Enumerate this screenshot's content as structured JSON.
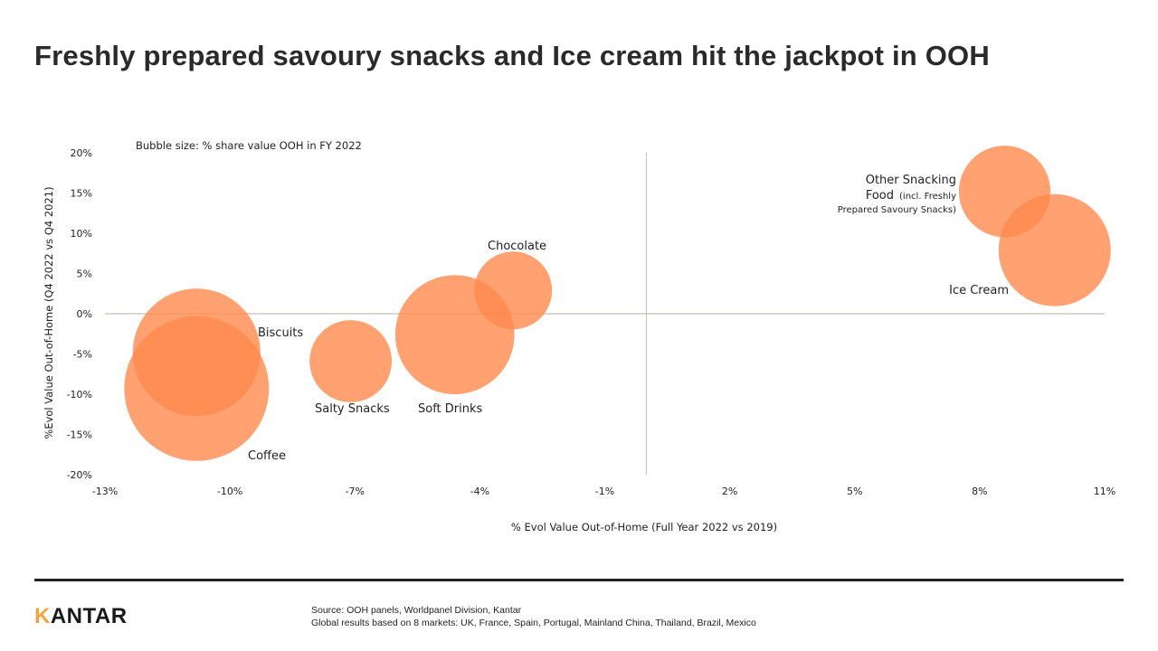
{
  "header": {
    "title": "Freshly prepared savoury snacks and Ice cream hit the jackpot in OOH"
  },
  "chart_data": {
    "type": "scatter",
    "subtype": "bubble",
    "note": "Bubble size: % share value OOH in FY 2022",
    "xlabel": "% Evol  Value Out-of-Home  (Full Year 2022 vs 2019)",
    "ylabel": "%Evol  Value Out-of-Home  (Q4 2022 vs Q4 2021)",
    "xlim": [
      -13,
      11
    ],
    "ylim": [
      -20,
      20
    ],
    "xticks": [
      -13,
      -10,
      -7,
      -4,
      -1,
      2,
      5,
      8,
      11
    ],
    "xtick_labels": [
      "-13%",
      "-10%",
      "-7%",
      "-4%",
      "-1%",
      "2%",
      "5%",
      "8%",
      "11%"
    ],
    "yticks": [
      20,
      15,
      10,
      5,
      0,
      -5,
      -10,
      -15,
      -20
    ],
    "ytick_labels": [
      "20%",
      "15%",
      "10%",
      "5%",
      "0%",
      "-5%",
      "-10%",
      "-15%",
      "-20%"
    ],
    "grid": false,
    "bubble_color": "#ff8a4e",
    "bubble_opacity": 0.8,
    "points": [
      {
        "name": "Coffee",
        "x": -10.8,
        "y": -9.3,
        "size": 9.0
      },
      {
        "name": "Biscuits",
        "x": -10.8,
        "y": -4.8,
        "size": 7.0
      },
      {
        "name": "Salty Snacks",
        "x": -7.1,
        "y": -5.9,
        "size": 2.9
      },
      {
        "name": "Soft Drinks",
        "x": -4.6,
        "y": -2.6,
        "size": 6.1
      },
      {
        "name": "Chocolate",
        "x": -3.2,
        "y": 2.9,
        "size": 2.6
      },
      {
        "name": "Other Snacking Food",
        "x": 8.6,
        "y": 15.2,
        "size": 3.6
      },
      {
        "name": "Ice Cream",
        "x": 9.8,
        "y": 7.9,
        "size": 5.4
      }
    ],
    "labels": {
      "coffee": "Coffee",
      "biscuits": "Biscuits",
      "salty_snacks": "Salty Snacks",
      "soft_drinks": "Soft Drinks",
      "chocolate": "Chocolate",
      "ice_cream": "Ice Cream",
      "other_snacking_line1": "Other Snacking",
      "other_snacking_line2": "Food",
      "other_snacking_line2_small": "(incl. Freshly",
      "other_snacking_line3_small": "Prepared Savoury Snacks)"
    }
  },
  "footer": {
    "logo_first": "K",
    "logo_rest": "ANTAR",
    "source_line1": "Source: OOH panels, Worldpanel Division, Kantar",
    "source_line2": "Global results based on 8 markets: UK, France, Spain, Portugal, Mainland China, Thailand, Brazil, Mexico",
    "accent_color": "#f2a33a"
  }
}
